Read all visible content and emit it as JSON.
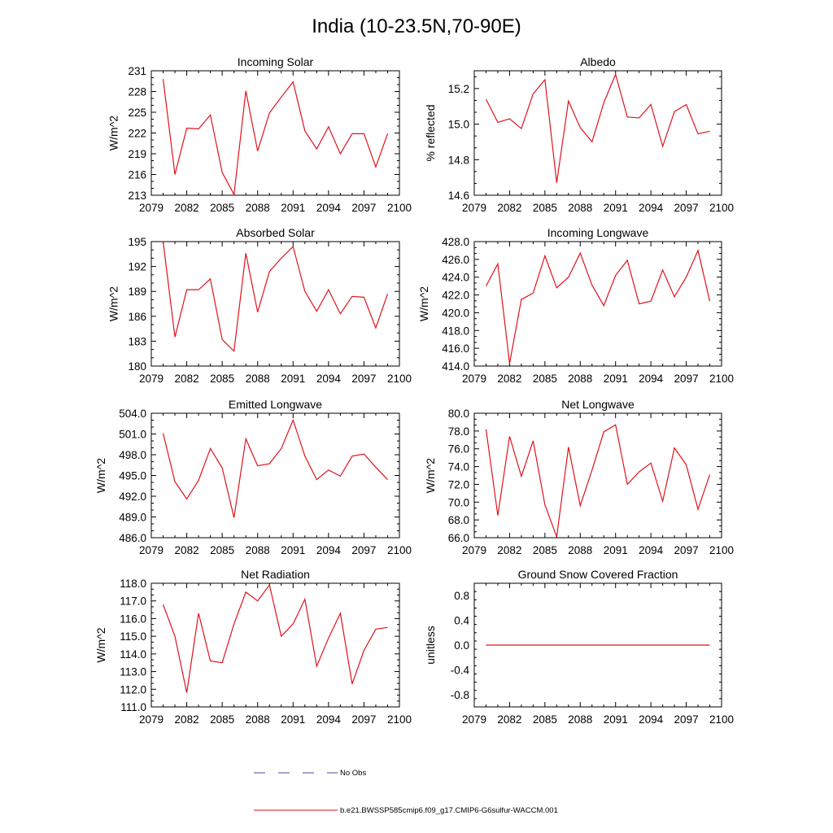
{
  "page_title": "India (10-23.5N,70-90E)",
  "legend": {
    "items": [
      {
        "label": "No Obs",
        "color": "#3b4fa0",
        "dash": "dashed"
      },
      {
        "label": "b.e21.BWSSP585cmip6.f09_g17.CMIP6-G6sulfur-WACCM.001",
        "color": "#e0121b",
        "dash": "solid"
      }
    ]
  },
  "chart_data": [
    {
      "type": "line",
      "title": "Incoming Solar",
      "ylabel": "W/m^2",
      "xlim": [
        2079,
        2100
      ],
      "ylim": [
        213,
        231
      ],
      "xticks": [
        "2079",
        "2082",
        "2085",
        "2088",
        "2091",
        "2094",
        "2097",
        "2100"
      ],
      "yticks": [
        "213",
        "216",
        "219",
        "222",
        "225",
        "228",
        "231"
      ],
      "x": [
        2080,
        2081,
        2082,
        2083,
        2084,
        2085,
        2086,
        2087,
        2088,
        2089,
        2090,
        2091,
        2092,
        2093,
        2094,
        2095,
        2096,
        2097,
        2098,
        2099
      ],
      "values": [
        229.8,
        216.0,
        222.7,
        222.6,
        224.6,
        216.3,
        213.1,
        228.1,
        219.4,
        224.9,
        227.2,
        229.4,
        222.3,
        219.7,
        222.9,
        219.0,
        221.9,
        221.9,
        217.1,
        221.9
      ]
    },
    {
      "type": "line",
      "title": "Albedo",
      "ylabel": "% reflected",
      "xlim": [
        2079,
        2100
      ],
      "ylim": [
        14.6,
        15.3
      ],
      "xticks": [
        "2079",
        "2082",
        "2085",
        "2088",
        "2091",
        "2094",
        "2097",
        "2100"
      ],
      "yticks": [
        "14.6",
        "14.8",
        "15.0",
        "15.2"
      ],
      "x": [
        2080,
        2081,
        2082,
        2083,
        2084,
        2085,
        2086,
        2087,
        2088,
        2089,
        2090,
        2091,
        2092,
        2093,
        2094,
        2095,
        2096,
        2097,
        2098,
        2099
      ],
      "values": [
        15.14,
        15.01,
        15.03,
        14.975,
        15.17,
        15.25,
        14.67,
        15.13,
        14.98,
        14.9,
        15.12,
        15.28,
        15.04,
        15.035,
        15.11,
        14.875,
        15.07,
        15.11,
        14.945,
        14.96
      ]
    },
    {
      "type": "line",
      "title": "Absorbed Solar",
      "ylabel": "W/m^2",
      "xlim": [
        2079,
        2100
      ],
      "ylim": [
        180,
        195
      ],
      "xticks": [
        "2079",
        "2082",
        "2085",
        "2088",
        "2091",
        "2094",
        "2097",
        "2100"
      ],
      "yticks": [
        "180",
        "183",
        "186",
        "189",
        "192",
        "195"
      ],
      "x": [
        2080,
        2081,
        2082,
        2083,
        2084,
        2085,
        2086,
        2087,
        2088,
        2089,
        2090,
        2091,
        2092,
        2093,
        2094,
        2095,
        2096,
        2097,
        2098,
        2099
      ],
      "values": [
        195.0,
        183.5,
        189.2,
        189.2,
        190.5,
        183.2,
        181.8,
        193.6,
        186.5,
        191.4,
        193.0,
        194.4,
        189.0,
        186.6,
        189.2,
        186.3,
        188.4,
        188.3,
        184.6,
        188.7
      ]
    },
    {
      "type": "line",
      "title": "Incoming Longwave",
      "ylabel": "W/m^2",
      "xlim": [
        2079,
        2100
      ],
      "ylim": [
        414.0,
        428.0
      ],
      "xticks": [
        "2079",
        "2082",
        "2085",
        "2088",
        "2091",
        "2094",
        "2097",
        "2100"
      ],
      "yticks": [
        "414.0",
        "416.0",
        "418.0",
        "420.0",
        "422.0",
        "424.0",
        "426.0",
        "428.0"
      ],
      "x": [
        2080,
        2081,
        2082,
        2083,
        2084,
        2085,
        2086,
        2087,
        2088,
        2089,
        2090,
        2091,
        2092,
        2093,
        2094,
        2095,
        2096,
        2097,
        2098,
        2099
      ],
      "values": [
        423.0,
        425.5,
        414.3,
        421.5,
        422.2,
        426.4,
        422.8,
        424.0,
        426.7,
        423.1,
        420.8,
        424.2,
        425.9,
        421.0,
        421.3,
        424.8,
        421.8,
        424.0,
        427.0,
        421.3
      ]
    },
    {
      "type": "line",
      "title": "Emitted Longwave",
      "ylabel": "W/m^2",
      "xlim": [
        2079,
        2100
      ],
      "ylim": [
        486.0,
        504.0
      ],
      "xticks": [
        "2079",
        "2082",
        "2085",
        "2088",
        "2091",
        "2094",
        "2097",
        "2100"
      ],
      "yticks": [
        "486.0",
        "489.0",
        "492.0",
        "495.0",
        "498.0",
        "501.0",
        "504.0"
      ],
      "x": [
        2080,
        2081,
        2082,
        2083,
        2084,
        2085,
        2086,
        2087,
        2088,
        2089,
        2090,
        2091,
        2092,
        2093,
        2094,
        2095,
        2096,
        2097,
        2098,
        2099
      ],
      "values": [
        501.1,
        494.1,
        491.6,
        494.3,
        498.9,
        496.1,
        488.9,
        500.3,
        496.4,
        496.7,
        498.9,
        503.0,
        497.8,
        494.4,
        495.8,
        494.9,
        497.8,
        498.1,
        496.2,
        494.4
      ]
    },
    {
      "type": "line",
      "title": "Net Longwave",
      "ylabel": "W/m^2",
      "xlim": [
        2079,
        2100
      ],
      "ylim": [
        66.0,
        80.0
      ],
      "xticks": [
        "2079",
        "2082",
        "2085",
        "2088",
        "2091",
        "2094",
        "2097",
        "2100"
      ],
      "yticks": [
        "66.0",
        "68.0",
        "70.0",
        "72.0",
        "74.0",
        "76.0",
        "78.0",
        "80.0"
      ],
      "x": [
        2080,
        2081,
        2082,
        2083,
        2084,
        2085,
        2086,
        2087,
        2088,
        2089,
        2090,
        2091,
        2092,
        2093,
        2094,
        2095,
        2096,
        2097,
        2098,
        2099
      ],
      "values": [
        78.2,
        68.5,
        77.4,
        72.9,
        76.9,
        69.7,
        66.1,
        76.2,
        69.6,
        73.6,
        77.9,
        78.7,
        72.0,
        73.4,
        74.4,
        70.1,
        76.1,
        74.2,
        69.2,
        73.1
      ]
    },
    {
      "type": "line",
      "title": "Net Radiation",
      "ylabel": "W/m^2",
      "xlim": [
        2079,
        2100
      ],
      "ylim": [
        111.0,
        118.0
      ],
      "xticks": [
        "2079",
        "2082",
        "2085",
        "2088",
        "2091",
        "2094",
        "2097",
        "2100"
      ],
      "yticks": [
        "111.0",
        "112.0",
        "113.0",
        "114.0",
        "115.0",
        "116.0",
        "117.0",
        "118.0"
      ],
      "x": [
        2080,
        2081,
        2082,
        2083,
        2084,
        2085,
        2086,
        2087,
        2088,
        2089,
        2090,
        2091,
        2092,
        2093,
        2094,
        2095,
        2096,
        2097,
        2098,
        2099
      ],
      "values": [
        116.8,
        115.0,
        111.8,
        116.3,
        113.6,
        113.5,
        115.7,
        117.5,
        117.0,
        117.9,
        115.0,
        115.7,
        117.1,
        113.3,
        114.9,
        116.3,
        112.3,
        114.2,
        115.4,
        115.5
      ]
    },
    {
      "type": "line",
      "title": "Ground Snow Covered Fraction",
      "ylabel": "unitless",
      "xlim": [
        2079,
        2100
      ],
      "ylim": [
        -1.0,
        1.0
      ],
      "xticks": [
        "2079",
        "2082",
        "2085",
        "2088",
        "2091",
        "2094",
        "2097",
        "2100"
      ],
      "yticks": [
        "-0.8",
        "-0.4",
        "0.0",
        "0.4",
        "0.8"
      ],
      "x": [
        2080,
        2081,
        2082,
        2083,
        2084,
        2085,
        2086,
        2087,
        2088,
        2089,
        2090,
        2091,
        2092,
        2093,
        2094,
        2095,
        2096,
        2097,
        2098,
        2099
      ],
      "values": [
        0,
        0,
        0,
        0,
        0,
        0,
        0,
        0,
        0,
        0,
        0,
        0,
        0,
        0,
        0,
        0,
        0,
        0,
        0,
        0
      ]
    }
  ]
}
